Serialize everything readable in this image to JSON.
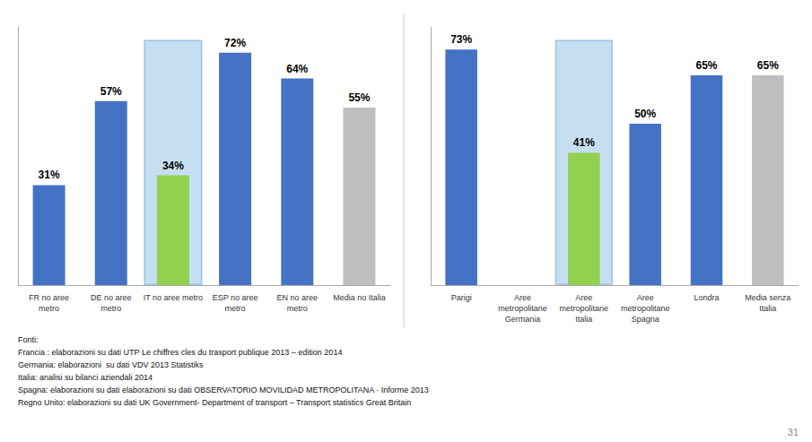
{
  "chart_data": [
    {
      "type": "bar",
      "categories": [
        "FR no aree\nmetro",
        "DE no aree\nmetro",
        "IT no aree metro",
        "ESP no aree\nmetro",
        "EN no aree\nmetro",
        "Media no Italia"
      ],
      "values": [
        31,
        57,
        34,
        72,
        64,
        55
      ],
      "value_labels": [
        "31%",
        "57%",
        "34%",
        "72%",
        "64%",
        "55%"
      ],
      "colors": [
        "#4472C4",
        "#4472C4",
        "#92D050",
        "#4472C4",
        "#4472C4",
        "#BFBFBF"
      ],
      "highlight": {
        "category": "IT no aree metro",
        "top": 76,
        "color": "#C5DFF0",
        "border_color": "#9DC3E6"
      },
      "ylim": [
        0,
        80
      ],
      "data_labels": true,
      "tick_labels": "x",
      "grid": false
    },
    {
      "type": "bar",
      "categories": [
        "Parigi",
        "Aree\nmetropolitane\nGermania",
        "Aree\nmetropolitane\nItalia",
        "Aree\nmetropolitane\nSpagna",
        "Londra",
        "Media senza\nItalia"
      ],
      "values": [
        73,
        null,
        41,
        50,
        65,
        65
      ],
      "value_labels": [
        "73%",
        null,
        "41%",
        "50%",
        "65%",
        "65%"
      ],
      "colors": [
        "#4472C4",
        null,
        "#92D050",
        "#4472C4",
        "#4472C4",
        "#BFBFBF"
      ],
      "highlight": {
        "category": "Aree\nmetropolitane\nItalia",
        "top": 76,
        "color": "#C5DFF0",
        "border_color": "#9DC3E6"
      },
      "ylim": [
        0,
        80
      ],
      "data_labels": true,
      "tick_labels": "x",
      "grid": false
    }
  ],
  "footnotes": [
    "Fonti:",
    "Francia : elaborazioni su dati UTP Le chiffres cles du trasport publique 2013 – edition 2014",
    "Germania: elaborazioni  su dati VDV 2013 Statistiks",
    "Italia: analisi su bilanci aziendali 2014",
    "Spagna: elaborazioni su dati elaborazioni su dati OBSERVATORIO MOVILIDAD METROPOLITANA · Informe 2013",
    "Regno Unito: elaborazioni su dati UK Government- Department of transport – Transport statistics Great Britain"
  ],
  "page_number": "31"
}
